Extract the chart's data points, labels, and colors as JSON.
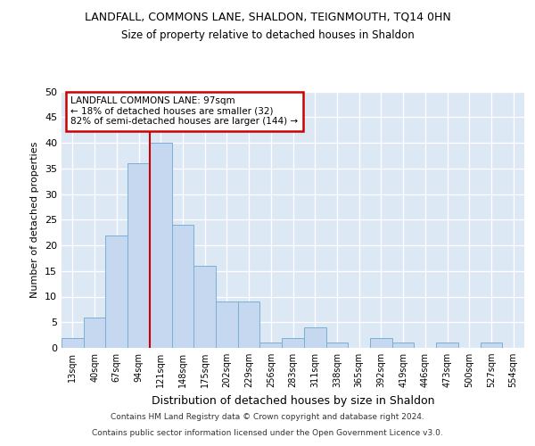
{
  "title": "LANDFALL, COMMONS LANE, SHALDON, TEIGNMOUTH, TQ14 0HN",
  "subtitle": "Size of property relative to detached houses in Shaldon",
  "xlabel": "Distribution of detached houses by size in Shaldon",
  "ylabel": "Number of detached properties",
  "bar_values": [
    2,
    6,
    22,
    36,
    40,
    24,
    16,
    9,
    9,
    1,
    2,
    4,
    1,
    0,
    2,
    1,
    0,
    1,
    0,
    1
  ],
  "categories": [
    "13sqm",
    "40sqm",
    "67sqm",
    "94sqm",
    "121sqm",
    "148sqm",
    "175sqm",
    "202sqm",
    "229sqm",
    "256sqm",
    "283sqm",
    "311sqm",
    "338sqm",
    "365sqm",
    "392sqm",
    "419sqm",
    "446sqm",
    "473sqm",
    "500sqm",
    "527sqm",
    "554sqm"
  ],
  "bar_color": "#c5d8f0",
  "bar_edge_color": "#7aafd4",
  "background_color": "#dde8f5",
  "grid_color": "#ffffff",
  "property_line_x": 3.5,
  "annotation_line1": "LANDFALL COMMONS LANE: 97sqm",
  "annotation_line2": "← 18% of detached houses are smaller (32)",
  "annotation_line3": "82% of semi-detached houses are larger (144) →",
  "annotation_box_color": "#ffffff",
  "annotation_box_edge": "#cc0000",
  "vline_color": "#cc0000",
  "ylim": [
    0,
    50
  ],
  "yticks": [
    0,
    5,
    10,
    15,
    20,
    25,
    30,
    35,
    40,
    45,
    50
  ],
  "footer_line1": "Contains HM Land Registry data © Crown copyright and database right 2024.",
  "footer_line2": "Contains public sector information licensed under the Open Government Licence v3.0."
}
